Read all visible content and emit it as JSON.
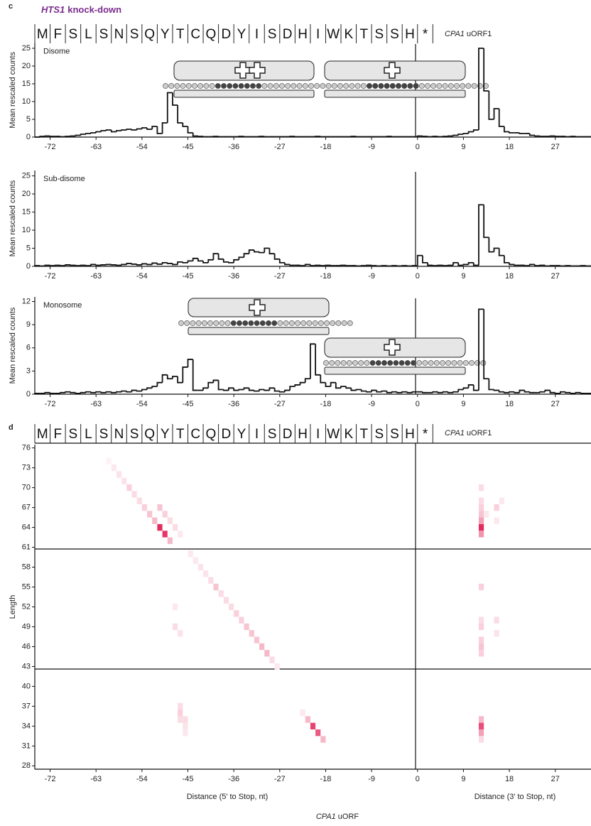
{
  "panel_c": {
    "label": "c",
    "title_gene": "HTS1",
    "title_suffix": "knock-down",
    "sequence": [
      "M",
      "F",
      "S",
      "L",
      "S",
      "N",
      "S",
      "Q",
      "Y",
      "T",
      "C",
      "Q",
      "D",
      "Y",
      "I",
      "S",
      "D",
      "H",
      "I",
      "W",
      "K",
      "T",
      "S",
      "S",
      "H",
      "*"
    ],
    "orf_gene": "CPA1",
    "orf_suffix": "uORF1"
  },
  "panel_d": {
    "label": "d",
    "sequence": [
      "M",
      "F",
      "S",
      "L",
      "S",
      "N",
      "S",
      "Q",
      "Y",
      "T",
      "C",
      "Q",
      "D",
      "Y",
      "I",
      "S",
      "D",
      "H",
      "I",
      "W",
      "K",
      "T",
      "S",
      "S",
      "H",
      "*"
    ],
    "orf_gene": "CPA1",
    "orf_suffix": "uORF1"
  },
  "chart_data": [
    {
      "type": "histogram",
      "label": "Disome",
      "y_label": "Mean rescaled counts",
      "color": "#111111",
      "bins": [
        -75,
        -74,
        -73,
        -72,
        -71,
        -70,
        -69,
        -68,
        -67,
        -66,
        -65,
        -64,
        -63,
        -62,
        -61,
        -60,
        -59,
        -58,
        -57,
        -56,
        -55,
        -54,
        -53,
        -52,
        -51,
        -50,
        -49,
        -48,
        -47,
        -46,
        -45,
        -44,
        -43,
        -42,
        -41,
        -40,
        -39,
        -38,
        -37,
        -36,
        -35,
        -34,
        -33,
        -32,
        -31,
        -30,
        -29,
        -28,
        -27,
        -26,
        -25,
        -24,
        -23,
        -22,
        -21,
        -20,
        -19,
        -18,
        -17,
        -16,
        -15,
        -14,
        -13,
        -12,
        -11,
        -10,
        -9,
        -8,
        -7,
        -6,
        -5,
        -4,
        -3,
        -2,
        -1,
        0,
        1,
        2,
        3,
        4,
        5,
        6,
        7,
        8,
        9,
        10,
        11,
        12,
        13,
        14,
        15,
        16,
        17,
        18,
        19,
        20,
        21,
        22,
        23,
        24,
        25,
        26,
        27,
        28,
        29,
        30,
        31,
        32,
        33,
        34
      ],
      "values": [
        0,
        0.2,
        0.3,
        0.2,
        0.2,
        0.1,
        0.2,
        0.3,
        0.5,
        0.8,
        1,
        1.2,
        1.5,
        1.8,
        2,
        1.5,
        1.8,
        2,
        2.2,
        2,
        2.3,
        2.6,
        2.2,
        3,
        1,
        4,
        12.5,
        9,
        4,
        3,
        1.2,
        0.3,
        0.2,
        0.1,
        0.1,
        0.2,
        0.1,
        0.1,
        0.1,
        0.1,
        0.2,
        0.1,
        0.1,
        0.1,
        0.2,
        0.1,
        0.1,
        0.1,
        0.1,
        0.1,
        0.2,
        0.1,
        0.1,
        0.1,
        0.1,
        0.2,
        0.1,
        0.1,
        0.1,
        0.1,
        0.1,
        0.1,
        0.2,
        0.1,
        0.1,
        0.1,
        0.1,
        0.1,
        0.1,
        0.2,
        0.1,
        0.1,
        0.1,
        0.1,
        0.1,
        0.3,
        0.2,
        0.1,
        0.2,
        0.1,
        0.2,
        0.3,
        0.5,
        0.8,
        1,
        1.5,
        2,
        25,
        13,
        5,
        8,
        3,
        1.5,
        1.2,
        1.2,
        1,
        1,
        0.5,
        0.3,
        0.2,
        0.2,
        0.3,
        0.2,
        0.2,
        0.1,
        0.2,
        0.1,
        0.1,
        0.1
      ],
      "xlim": [
        -75,
        34
      ],
      "xticks": [
        -72,
        -63,
        -54,
        -45,
        -36,
        -27,
        -18,
        -9,
        0,
        9,
        18,
        27
      ],
      "ylim": [
        0,
        26.5
      ],
      "yticks": [
        0,
        5,
        10,
        15,
        20,
        25
      ]
    },
    {
      "type": "histogram",
      "label": "Sub-disome",
      "y_label": "Mean rescaled counts",
      "color": "#111111",
      "bins": [
        -75,
        -74,
        -73,
        -72,
        -71,
        -70,
        -69,
        -68,
        -67,
        -66,
        -65,
        -64,
        -63,
        -62,
        -61,
        -60,
        -59,
        -58,
        -57,
        -56,
        -55,
        -54,
        -53,
        -52,
        -51,
        -50,
        -49,
        -48,
        -47,
        -46,
        -45,
        -44,
        -43,
        -42,
        -41,
        -40,
        -39,
        -38,
        -37,
        -36,
        -35,
        -34,
        -33,
        -32,
        -31,
        -30,
        -29,
        -28,
        -27,
        -26,
        -25,
        -24,
        -23,
        -22,
        -21,
        -20,
        -19,
        -18,
        -17,
        -16,
        -15,
        -14,
        -13,
        -12,
        -11,
        -10,
        -9,
        -8,
        -7,
        -6,
        -5,
        -4,
        -3,
        -2,
        -1,
        0,
        1,
        2,
        3,
        4,
        5,
        6,
        7,
        8,
        9,
        10,
        11,
        12,
        13,
        14,
        15,
        16,
        17,
        18,
        19,
        20,
        21,
        22,
        23,
        24,
        25,
        26,
        27,
        28,
        29,
        30,
        31,
        32,
        33,
        34
      ],
      "values": [
        0.2,
        0.1,
        0.3,
        0.2,
        0.3,
        0.2,
        0.4,
        0.3,
        0.2,
        0.3,
        0.2,
        0.5,
        0.3,
        0.4,
        0.5,
        0.4,
        0.3,
        0.5,
        0.8,
        0.6,
        0.4,
        0.7,
        0.5,
        0.9,
        0.6,
        1,
        0.8,
        0.5,
        1.2,
        1,
        1.5,
        2.2,
        1.5,
        1,
        1.8,
        3.5,
        2,
        1.2,
        1,
        1.8,
        2.5,
        3.5,
        4.5,
        4,
        3.8,
        5,
        3.5,
        2,
        1,
        0.5,
        0.3,
        0.3,
        0.2,
        0.5,
        0.2,
        0.3,
        0.2,
        0.3,
        0.2,
        0.2,
        0.3,
        0.2,
        0.2,
        0.1,
        0.2,
        0.3,
        0.2,
        0.1,
        0.2,
        0.1,
        0.2,
        0.1,
        0.2,
        0.1,
        0.2,
        3,
        1,
        0.3,
        0.2,
        0.3,
        0.2,
        0.3,
        1,
        0.3,
        0.5,
        1,
        0.3,
        17,
        8,
        4,
        5,
        3,
        1,
        0.5,
        0.3,
        0.3,
        0.2,
        0.5,
        0.2,
        0.3,
        0.1,
        0.2,
        0.2,
        0.1,
        0.2,
        0.1,
        0.1,
        0.2,
        0.1
      ],
      "xlim": [
        -75,
        34
      ],
      "xticks": [
        -72,
        -63,
        -54,
        -45,
        -36,
        -27,
        -18,
        -9,
        0,
        9,
        18,
        27
      ],
      "ylim": [
        0,
        26.5
      ],
      "yticks": [
        0,
        5,
        10,
        15,
        20,
        25
      ]
    },
    {
      "type": "histogram",
      "label": "Monosome",
      "y_label": "Mean rescaled counts",
      "color": "#111111",
      "bins": [
        -75,
        -74,
        -73,
        -72,
        -71,
        -70,
        -69,
        -68,
        -67,
        -66,
        -65,
        -64,
        -63,
        -62,
        -61,
        -60,
        -59,
        -58,
        -57,
        -56,
        -55,
        -54,
        -53,
        -52,
        -51,
        -50,
        -49,
        -48,
        -47,
        -46,
        -45,
        -44,
        -43,
        -42,
        -41,
        -40,
        -39,
        -38,
        -37,
        -36,
        -35,
        -34,
        -33,
        -32,
        -31,
        -30,
        -29,
        -28,
        -27,
        -26,
        -25,
        -24,
        -23,
        -22,
        -21,
        -20,
        -19,
        -18,
        -17,
        -16,
        -15,
        -14,
        -13,
        -12,
        -11,
        -10,
        -9,
        -8,
        -7,
        -6,
        -5,
        -4,
        -3,
        -2,
        -1,
        0,
        1,
        2,
        3,
        4,
        5,
        6,
        7,
        8,
        9,
        10,
        11,
        12,
        13,
        14,
        15,
        16,
        17,
        18,
        19,
        20,
        21,
        22,
        23,
        24,
        25,
        26,
        27,
        28,
        29,
        30,
        31,
        32,
        33,
        34
      ],
      "values": [
        0.1,
        0.1,
        0.2,
        0.1,
        0.1,
        0.2,
        0.3,
        0.2,
        0.1,
        0.2,
        0.3,
        0.2,
        0.3,
        0.2,
        0.3,
        0.2,
        0.3,
        0.4,
        0.3,
        0.5,
        0.4,
        0.6,
        0.8,
        1,
        1.5,
        2.5,
        2,
        2.3,
        1.5,
        3.5,
        4.5,
        0.5,
        0.5,
        0.8,
        1.5,
        1.8,
        0.6,
        0.5,
        0.8,
        0.5,
        0.6,
        0.8,
        0.5,
        0.4,
        0.6,
        0.5,
        0.8,
        0.4,
        0.3,
        0.5,
        1,
        1.2,
        1.5,
        2,
        6.5,
        2.5,
        1.5,
        1,
        1.5,
        0.8,
        1,
        0.8,
        0.5,
        0.6,
        0.4,
        0.3,
        0.5,
        0.3,
        0.4,
        0.2,
        0.3,
        0.2,
        0.3,
        0.2,
        0.3,
        0.3,
        0.2,
        0.2,
        0.3,
        0.2,
        0.3,
        0.2,
        0.3,
        0.6,
        0.8,
        1.2,
        0.5,
        11,
        2,
        0.6,
        0.5,
        0.3,
        0.2,
        0.3,
        0.2,
        0.5,
        0.3,
        0.2,
        0.2,
        0.3,
        0.5,
        0.2,
        0.1,
        0.3,
        0.2,
        0.1,
        0.2,
        0.1,
        0.1
      ],
      "xlim": [
        -75,
        34
      ],
      "xticks": [
        -72,
        -63,
        -54,
        -45,
        -36,
        -27,
        -18,
        -9,
        0,
        9,
        18,
        27
      ],
      "ylim": [
        0,
        12.6
      ],
      "yticks": [
        0,
        3,
        6,
        9,
        12
      ]
    },
    {
      "type": "heatmap",
      "y_label": "Length",
      "x_labels": [
        "Distance (5′ to Stop, nt)",
        "Distance (3′ to Stop, nt)"
      ],
      "x_label_gene": "CPA1",
      "x_label_suffix": "uORF",
      "color": "#e0144c",
      "x": [
        -61,
        -60,
        -59,
        -58,
        -57,
        -56,
        -55,
        -54,
        -53,
        -52,
        -51,
        -50,
        -49,
        -51,
        -50,
        -49,
        -48,
        -47,
        12,
        12,
        12,
        12,
        12,
        12,
        12,
        13,
        15,
        16,
        15,
        -45,
        -44,
        -43,
        -42,
        -41,
        -40,
        -39,
        -38,
        -37,
        -36,
        -35,
        -34,
        -33,
        -32,
        -31,
        -30,
        -29,
        -28,
        -48,
        -47,
        -48,
        12,
        12,
        12,
        12,
        12,
        12,
        15,
        15,
        -47,
        -47,
        -46,
        -47,
        -46,
        -46,
        -23,
        -22,
        -21,
        -20,
        -19,
        12,
        12,
        12,
        12
      ],
      "y": [
        74,
        73,
        72,
        71,
        70,
        69,
        68,
        67,
        66,
        65,
        64,
        63,
        62,
        67,
        66,
        65,
        64,
        63,
        64,
        63,
        65,
        66,
        67,
        68,
        70,
        66,
        67,
        68,
        65,
        60,
        59,
        58,
        57,
        56,
        55,
        54,
        53,
        52,
        51,
        50,
        49,
        48,
        47,
        46,
        45,
        44,
        43,
        49,
        48,
        52,
        55,
        50,
        49,
        47,
        46,
        45,
        50,
        48,
        37,
        36,
        35,
        35,
        34,
        33,
        36,
        35,
        34,
        33,
        32,
        35,
        34,
        33,
        32
      ],
      "values": [
        0.05,
        0.1,
        0.12,
        0.12,
        0.2,
        0.15,
        0.15,
        0.2,
        0.25,
        0.3,
        0.9,
        0.85,
        0.3,
        0.25,
        0.2,
        0.15,
        0.15,
        0.1,
        0.9,
        0.45,
        0.4,
        0.25,
        0.2,
        0.15,
        0.15,
        0.1,
        0.2,
        0.1,
        0.1,
        0.1,
        0.1,
        0.12,
        0.12,
        0.15,
        0.25,
        0.15,
        0.15,
        0.15,
        0.2,
        0.2,
        0.25,
        0.25,
        0.25,
        0.3,
        0.3,
        0.15,
        0.1,
        0.15,
        0.12,
        0.1,
        0.2,
        0.15,
        0.2,
        0.2,
        0.25,
        0.2,
        0.15,
        0.12,
        0.15,
        0.2,
        0.15,
        0.15,
        0.12,
        0.1,
        0.1,
        0.3,
        0.8,
        0.7,
        0.3,
        0.3,
        0.75,
        0.4,
        0.15
      ],
      "xlim": [
        -75,
        34
      ],
      "xticks": [
        -72,
        -63,
        -54,
        -45,
        -36,
        -27,
        -18,
        -9,
        0,
        9,
        18,
        27
      ],
      "ylim": [
        27.5,
        76.5
      ],
      "yticks": [
        28,
        31,
        34,
        37,
        40,
        43,
        46,
        49,
        52,
        55,
        58,
        61,
        64,
        67,
        70,
        73,
        76
      ]
    }
  ]
}
